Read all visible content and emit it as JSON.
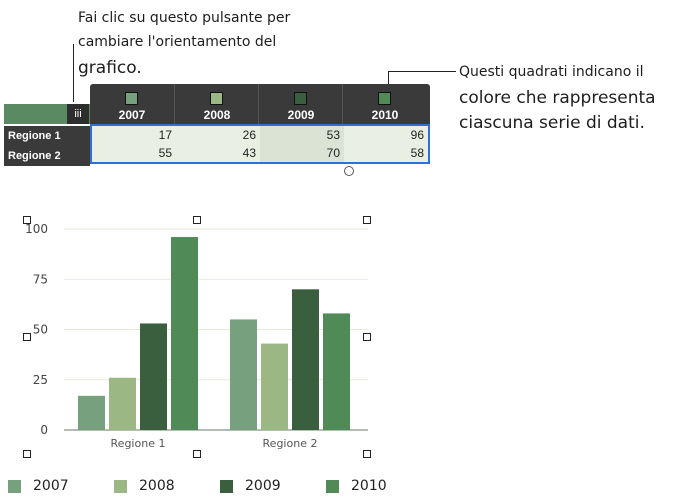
{
  "callouts": {
    "orientation": {
      "line1": "Fai clic su questo pulsante per",
      "line2": "cambiare l'orientamento del",
      "line3": "grafico."
    },
    "swatches": {
      "line1": "Questi quadrati indicano il",
      "line2": "colore che rappresenta",
      "line3": "ciascuna serie di dati."
    }
  },
  "editor": {
    "toggle_icon": "orientation-toggle-icon",
    "toggle_glyph": "iii",
    "columns": [
      "2007",
      "2008",
      "2009",
      "2010"
    ],
    "rows": [
      {
        "label": "Regione 1",
        "values": [
          "17",
          "26",
          "53",
          "96"
        ]
      },
      {
        "label": "Regione 2",
        "values": [
          "55",
          "43",
          "70",
          "58"
        ]
      }
    ]
  },
  "colors": {
    "2007": "#76a07e",
    "2008": "#9bb784",
    "2009": "#3a5f3f",
    "2010": "#4f8a57"
  },
  "chart_data": {
    "type": "bar",
    "categories": [
      "Regione 1",
      "Regione 2"
    ],
    "series": [
      {
        "name": "2007",
        "values": [
          17,
          55
        ]
      },
      {
        "name": "2008",
        "values": [
          26,
          43
        ]
      },
      {
        "name": "2009",
        "values": [
          53,
          70
        ]
      },
      {
        "name": "2010",
        "values": [
          96,
          58
        ]
      }
    ],
    "ylim": [
      0,
      100
    ],
    "yticks": [
      "0",
      "25",
      "50",
      "75",
      "100"
    ],
    "grid": true,
    "legend": "bottom"
  }
}
